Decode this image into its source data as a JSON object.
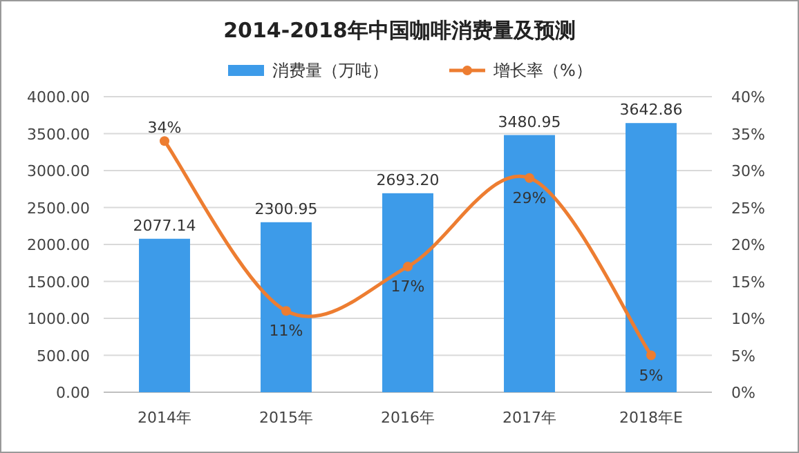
{
  "chart_data": {
    "type": "bar",
    "title": "2014-2018年中国咖啡消费量及预测",
    "categories": [
      "2014年",
      "2015年",
      "2016年",
      "2017年",
      "2018年E"
    ],
    "series": [
      {
        "name": "消费量（万吨）",
        "color": "#3d9be9",
        "values": [
          2077.14,
          2300.95,
          2693.2,
          3480.95,
          3642.86
        ],
        "value_labels": [
          "2077.14",
          "2300.95",
          "2693.20",
          "3480.95",
          "3642.86"
        ]
      },
      {
        "name": "增长率（%）",
        "type": "line",
        "axis": "y2",
        "color": "#ed7d31",
        "values": [
          34,
          11,
          17,
          29,
          5
        ],
        "value_labels": [
          "34%",
          "11%",
          "17%",
          "29%",
          "5%"
        ]
      }
    ],
    "ylim": [
      0,
      4000
    ],
    "yticks": [
      {
        "value": 0,
        "label": "0.00"
      },
      {
        "value": 500,
        "label": "500.00"
      },
      {
        "value": 1000,
        "label": "1000.00"
      },
      {
        "value": 1500,
        "label": "1500.00"
      },
      {
        "value": 2000,
        "label": "2000.00"
      },
      {
        "value": 2500,
        "label": "2500.00"
      },
      {
        "value": 3000,
        "label": "3000.00"
      },
      {
        "value": 3500,
        "label": "3500.00"
      },
      {
        "value": 4000,
        "label": "4000.00"
      }
    ],
    "y2lim": [
      0,
      40
    ],
    "y2ticks": [
      {
        "value": 0,
        "label": "0%"
      },
      {
        "value": 5,
        "label": "5%"
      },
      {
        "value": 10,
        "label": "10%"
      },
      {
        "value": 15,
        "label": "15%"
      },
      {
        "value": 20,
        "label": "20%"
      },
      {
        "value": 25,
        "label": "25%"
      },
      {
        "value": 30,
        "label": "30%"
      },
      {
        "value": 35,
        "label": "35%"
      },
      {
        "value": 40,
        "label": "40%"
      }
    ],
    "grid": "y",
    "legend": "top",
    "marker": "circle"
  }
}
